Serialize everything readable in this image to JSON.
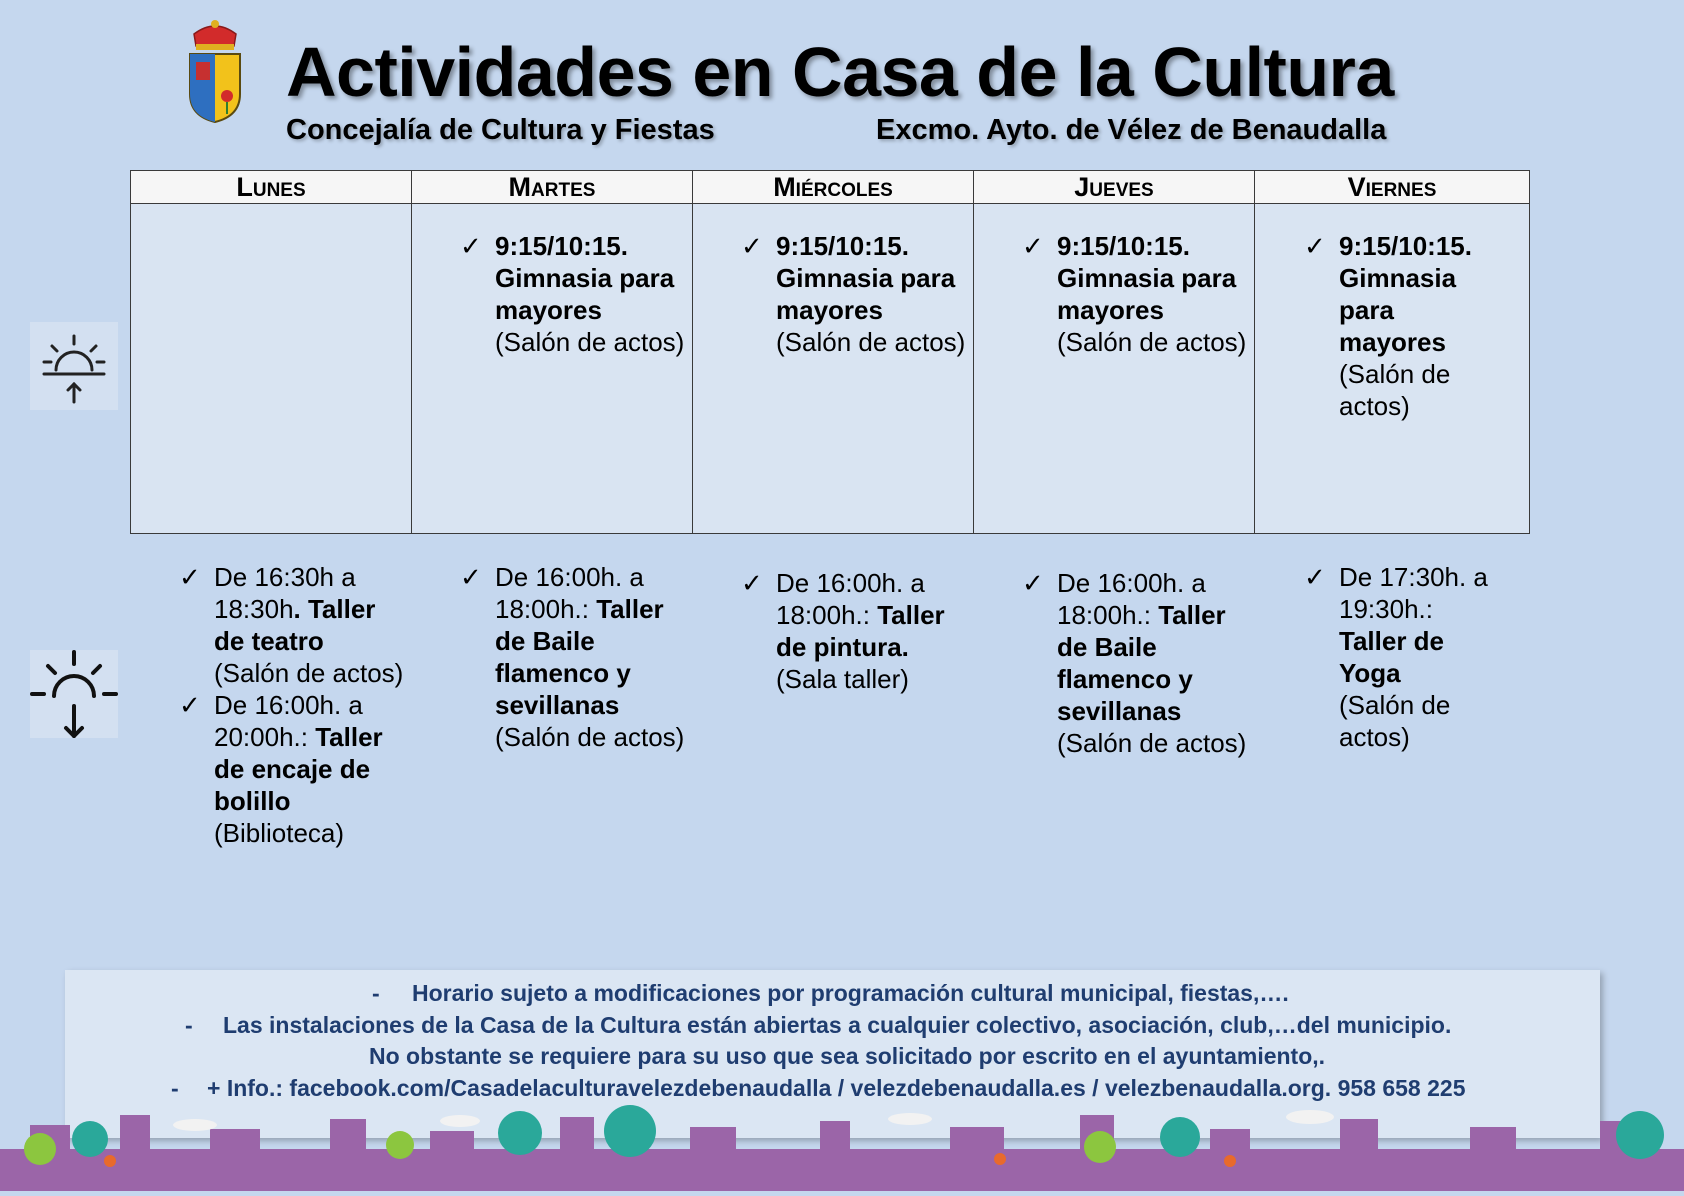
{
  "header": {
    "title": "Actividades en Casa de la Cultura",
    "subtitle_left": "Concejalía de Cultura y Fiestas",
    "subtitle_right": "Excmo. Ayto. de Vélez de Benaudalla",
    "crest_icon": "municipal-crest-icon"
  },
  "days": [
    "Lunes",
    "Martes",
    "Miércoles",
    "Jueves",
    "Viernes"
  ],
  "morning_icon": "sunrise-icon",
  "afternoon_icon": "sunset-icon",
  "check_glyph": "✓",
  "morning": {
    "martes": {
      "time": "9:15/10:15.",
      "activity": "Gimnasia para mayores",
      "place": "(Salón de actos)"
    },
    "miercoles": {
      "time": "9:15/10:15.",
      "activity": "Gimnasia para mayores",
      "place": "(Salón de actos)"
    },
    "jueves": {
      "time": "9:15/10:15.",
      "activity": "Gimnasia para mayores",
      "place": "(Salón de actos)"
    },
    "viernes": {
      "time": "9:15/10:15.",
      "activity": "Gimnasia para mayores",
      "place": "(Salón de actos)"
    }
  },
  "afternoon": {
    "lunes": [
      {
        "time": "De 16:30h a 18:30h",
        "activity": ". Taller de teatro",
        "place": "(Salón de actos)"
      },
      {
        "time": "De 16:00h. a 20:00h.:",
        "activity": "Taller de encaje de bolillo",
        "place": "(Biblioteca)"
      }
    ],
    "martes": {
      "time": "De 16:00h. a 18:00h.:",
      "activity": "Taller de Baile flamenco y sevillanas",
      "place": "(Salón de actos)"
    },
    "miercoles": {
      "time": "De 16:00h. a 18:00h.:",
      "activity": "Taller de pintura.",
      "place": "(Sala taller)"
    },
    "jueves": {
      "time": "De 16:00h. a 18:00h.:",
      "activity": "Taller de Baile flamenco y sevillanas",
      "place": "(Salón de actos)"
    },
    "viernes": {
      "time": "De 17:30h. a 19:30h.:",
      "activity": "Taller de Yoga",
      "place": "(Salón de actos)"
    }
  },
  "notes": {
    "dash": "-",
    "line1": "Horario sujeto a modificaciones por programación cultural municipal, fiestas,….",
    "line2": "Las instalaciones de la  Casa de la Cultura están abiertas a cualquier colectivo, asociación, club,…del municipio.",
    "line3": "No obstante se requiere para su uso que sea solicitado por escrito en el ayuntamiento,.",
    "line4": "+ Info.: facebook.com/Casadelaculturavelezdebenaudalla / velezdebenaudalla.es / velezbenaudalla.org.  958 658 225"
  },
  "colors": {
    "background": "#c5d7ee",
    "cell": "#d9e4f2",
    "note_text": "#1f3d70",
    "skyline": "#9b65a8"
  },
  "footer_art_icon": "town-skyline-illustration"
}
